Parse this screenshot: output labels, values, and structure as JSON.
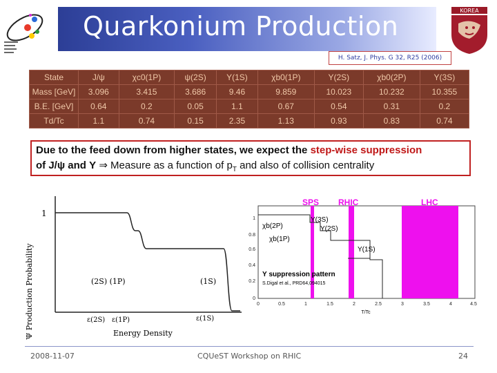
{
  "title": "Quarkonium Production",
  "reference": "H. Satz, J. Phys. G 32, R25 (2006)",
  "table": {
    "rows": [
      [
        "State",
        "J/ψ",
        "χc0(1P)",
        "ψ(2S)",
        "Υ(1S)",
        "χb0(1P)",
        "Υ(2S)",
        "χb0(2P)",
        "Υ(3S)"
      ],
      [
        "Mass [GeV]",
        "3.096",
        "3.415",
        "3.686",
        "9.46",
        "9.859",
        "10.023",
        "10.232",
        "10.355"
      ],
      [
        "B.E. [GeV]",
        "0.64",
        "0.2",
        "0.05",
        "1.1",
        "0.67",
        "0.54",
        "0.31",
        "0.2"
      ],
      [
        "Td/Tc",
        "1.1",
        "0.74",
        "0.15",
        "2.35",
        "1.13",
        "0.93",
        "0.83",
        "0.74"
      ]
    ]
  },
  "text": {
    "l1_a": "Due to the feed down from higher states, we expect the ",
    "l1_b": "step-wise suppression",
    "l2_a": "of J/ψ and Υ ",
    "l2_b": "⇒ Measure as a function of p",
    "l2_sub": "T",
    "l2_c": " and also of collision centrality"
  },
  "left_plot": {
    "ylabel": "J/Ψ Production Probability",
    "xlabel": "Energy Density",
    "y1_label": "1",
    "levels": "(2S) (1P)",
    "level_1s": "(1S)",
    "eps_2s": "ε(2S)",
    "eps_1p": "ε(1P)",
    "eps_1s": "ε(1S)"
  },
  "right_plot": {
    "sps": "SPS",
    "rhic": "RHIC",
    "lhc": "LHC",
    "y3s": "Υ(3S)",
    "y2s": "Υ(2S)",
    "chi2p": "χb(2P)",
    "chi1p": "χb(1P)",
    "y1s": "Υ(1S)",
    "pattern": "Υ suppression pattern",
    "cite": "S.Digal et al., PRD64,094015",
    "xlabel": "T/Tc",
    "yticks": [
      "1",
      "0.8",
      "0.6",
      "0.4",
      "0.2",
      "0"
    ],
    "xticks": [
      "0",
      "0.5",
      "1",
      "1.5",
      "2",
      "2.5",
      "3",
      "3.5",
      "4",
      "4.5"
    ]
  },
  "footer": {
    "date": "2008-11-07",
    "event": "CQUeST Workshop on RHIC",
    "page": "24"
  },
  "colors": {
    "banner": "#2c3e96",
    "table_bg": "#7b3a2a",
    "magenta": "#ee10ee",
    "red": "#c01818"
  }
}
